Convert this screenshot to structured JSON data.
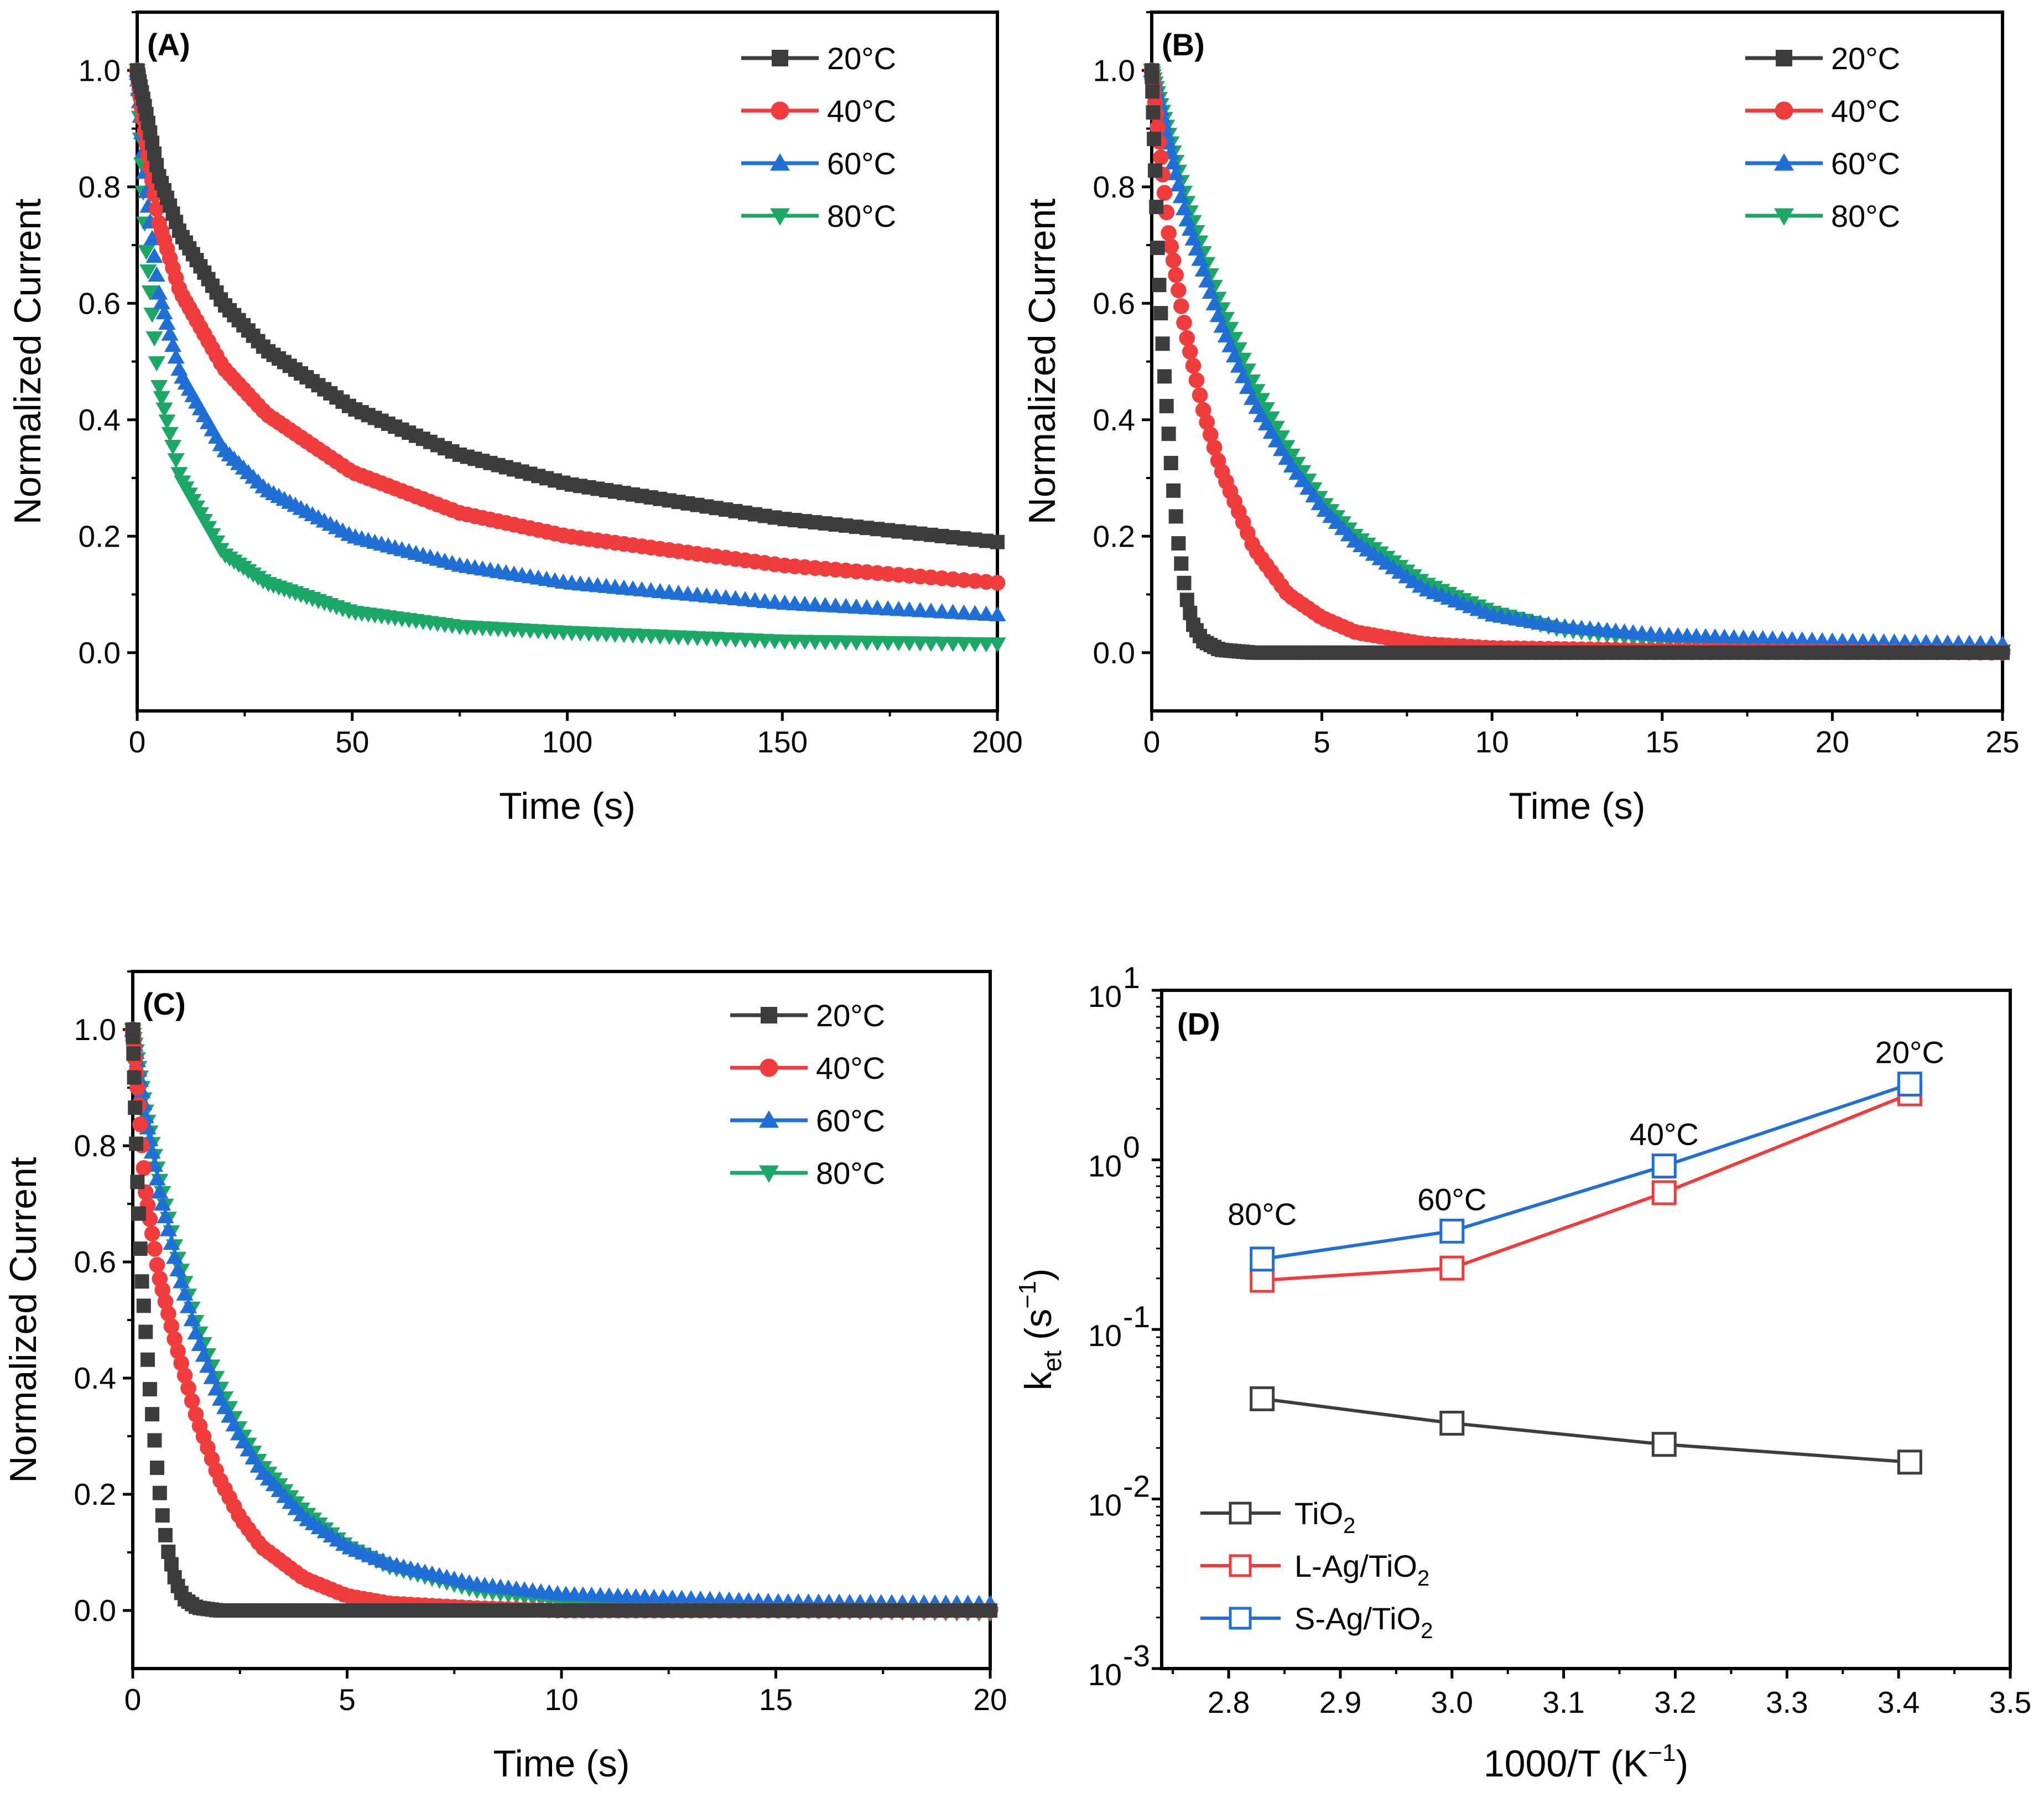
{
  "figure_title": "",
  "colors": {
    "20C": "#3d3d3d",
    "40C": "#f03c3c",
    "60C": "#1f6fd6",
    "80C": "#1ba866",
    "TiO2": "#3d3d3d",
    "L": "#f03c3c",
    "S": "#1f6fd6"
  },
  "chart_data": [
    {
      "id": "A",
      "panel_label": "(A)",
      "type": "scatter",
      "xlabel": "Time (s)",
      "ylabel": "Normalized Current",
      "xlim": [
        0,
        200
      ],
      "ylim": [
        -0.1,
        1.1
      ],
      "xticks": [
        "0",
        "50",
        "100",
        "150",
        "200"
      ],
      "yticks": [
        "0.0",
        "0.2",
        "0.4",
        "0.6",
        "0.8",
        "1.0"
      ],
      "legend": [
        "20°C",
        "40°C",
        "60°C",
        "80°C"
      ],
      "legend_position": "top-right",
      "series": [
        {
          "name": "20°C",
          "x": [
            0,
            2,
            5,
            10,
            20,
            30,
            50,
            75,
            100,
            150,
            200
          ],
          "y": [
            1.0,
            0.93,
            0.82,
            0.72,
            0.6,
            0.52,
            0.42,
            0.34,
            0.29,
            0.23,
            0.19
          ]
        },
        {
          "name": "40°C",
          "x": [
            0,
            2,
            5,
            10,
            20,
            30,
            50,
            75,
            100,
            150,
            200
          ],
          "y": [
            1.0,
            0.88,
            0.74,
            0.62,
            0.49,
            0.41,
            0.31,
            0.24,
            0.2,
            0.15,
            0.12
          ]
        },
        {
          "name": "60°C",
          "x": [
            0,
            2,
            5,
            10,
            20,
            30,
            50,
            75,
            100,
            150,
            200
          ],
          "y": [
            1.0,
            0.8,
            0.62,
            0.48,
            0.35,
            0.28,
            0.2,
            0.15,
            0.12,
            0.085,
            0.065
          ]
        },
        {
          "name": "80°C",
          "x": [
            0,
            2,
            5,
            10,
            20,
            30,
            50,
            75,
            100,
            150,
            200
          ],
          "y": [
            1.0,
            0.7,
            0.46,
            0.3,
            0.17,
            0.12,
            0.07,
            0.045,
            0.035,
            0.02,
            0.015
          ]
        }
      ]
    },
    {
      "id": "B",
      "panel_label": "(B)",
      "type": "scatter",
      "xlabel": "Time (s)",
      "ylabel": "Normalized Current",
      "xlim": [
        0,
        25
      ],
      "ylim": [
        -0.1,
        1.1
      ],
      "xticks": [
        "0",
        "5",
        "10",
        "15",
        "20",
        "25"
      ],
      "yticks": [
        "0.0",
        "0.2",
        "0.4",
        "0.6",
        "0.8",
        "1.0"
      ],
      "legend": [
        "20°C",
        "40°C",
        "60°C",
        "80°C"
      ],
      "legend_position": "top-right",
      "series": [
        {
          "name": "20°C",
          "x": [
            0,
            0.2,
            0.4,
            0.6,
            0.8,
            1.0,
            1.2,
            1.5,
            2,
            3,
            5,
            10,
            25
          ],
          "y": [
            1.0,
            0.65,
            0.45,
            0.3,
            0.18,
            0.1,
            0.05,
            0.02,
            0.005,
            0.0,
            0.0,
            0.0,
            0.0
          ]
        },
        {
          "name": "40°C",
          "x": [
            0,
            0.5,
            1,
            1.5,
            2,
            3,
            4,
            5,
            6,
            8,
            10,
            15,
            25
          ],
          "y": [
            1.0,
            0.72,
            0.55,
            0.42,
            0.32,
            0.18,
            0.1,
            0.06,
            0.035,
            0.015,
            0.008,
            0.004,
            0.0
          ]
        },
        {
          "name": "60°C",
          "x": [
            0,
            1,
            2,
            3,
            4,
            5,
            6,
            8,
            10,
            12,
            15,
            20,
            25
          ],
          "y": [
            1.0,
            0.75,
            0.57,
            0.43,
            0.33,
            0.25,
            0.19,
            0.11,
            0.065,
            0.045,
            0.03,
            0.02,
            0.015
          ]
        },
        {
          "name": "80°C",
          "x": [
            0,
            1,
            2,
            3,
            4,
            5,
            6,
            8,
            10,
            12,
            15,
            20,
            25
          ],
          "y": [
            1.0,
            0.78,
            0.6,
            0.46,
            0.35,
            0.26,
            0.2,
            0.12,
            0.07,
            0.04,
            0.02,
            0.008,
            0.003
          ]
        }
      ]
    },
    {
      "id": "C",
      "panel_label": "(C)",
      "type": "scatter",
      "xlabel": "Time (s)",
      "ylabel": "Normalized Current",
      "xlim": [
        0,
        20
      ],
      "ylim": [
        -0.1,
        1.1
      ],
      "xticks": [
        "0",
        "5",
        "10",
        "15",
        "20"
      ],
      "yticks": [
        "0.0",
        "0.2",
        "0.4",
        "0.6",
        "0.8",
        "1.0"
      ],
      "legend": [
        "20°C",
        "40°C",
        "60°C",
        "80°C"
      ],
      "legend_position": "top-right",
      "series": [
        {
          "name": "20°C",
          "x": [
            0,
            0.1,
            0.2,
            0.3,
            0.4,
            0.5,
            0.6,
            0.7,
            0.8,
            1.0,
            1.2,
            1.5,
            2,
            5,
            20
          ],
          "y": [
            1.0,
            0.75,
            0.58,
            0.48,
            0.38,
            0.3,
            0.22,
            0.16,
            0.11,
            0.05,
            0.02,
            0.005,
            0.0,
            0.0,
            0.0
          ]
        },
        {
          "name": "40°C",
          "x": [
            0,
            0.3,
            0.6,
            1,
            1.5,
            2,
            2.5,
            3,
            4,
            5,
            6,
            8,
            10,
            15,
            20
          ],
          "y": [
            1.0,
            0.72,
            0.58,
            0.46,
            0.33,
            0.23,
            0.16,
            0.11,
            0.055,
            0.025,
            0.012,
            0.004,
            0.0,
            0.0,
            0.0
          ]
        },
        {
          "name": "60°C",
          "x": [
            0,
            0.3,
            0.6,
            1,
            1.5,
            2,
            2.5,
            3,
            4,
            5,
            6,
            8,
            10,
            15,
            20
          ],
          "y": [
            1.0,
            0.85,
            0.73,
            0.6,
            0.47,
            0.37,
            0.3,
            0.24,
            0.16,
            0.11,
            0.08,
            0.045,
            0.028,
            0.015,
            0.012
          ]
        },
        {
          "name": "80°C",
          "x": [
            0,
            0.3,
            0.6,
            1,
            1.5,
            2,
            2.5,
            3,
            4,
            5,
            6,
            8,
            10,
            15,
            20
          ],
          "y": [
            1.0,
            0.86,
            0.75,
            0.62,
            0.49,
            0.39,
            0.31,
            0.25,
            0.17,
            0.11,
            0.075,
            0.035,
            0.015,
            0.0,
            -0.005
          ]
        }
      ]
    },
    {
      "id": "D",
      "panel_label": "(D)",
      "type": "line",
      "xlabel": "1000/T (K",
      "xlabel_sup": "−1",
      "xlabel_end": ")",
      "ylabel_base": "k",
      "ylabel_sub": "et",
      "ylabel_mid": " (s",
      "ylabel_sup": "−1",
      "ylabel_end": ")",
      "xlim": [
        2.74,
        3.5
      ],
      "ylim_log10": [
        -3,
        1
      ],
      "xticks": [
        2.8,
        2.9,
        3.0,
        3.1,
        3.2,
        3.3,
        3.4,
        3.5
      ],
      "xtick_labels": [
        "2.8",
        "2.9",
        "3.0",
        "3.1",
        "3.2",
        "3.3",
        "3.4",
        "3.5"
      ],
      "yticks_exp": [
        "1",
        "0",
        "-1",
        "-2",
        "-3"
      ],
      "ytick_base": "10",
      "legend_position": "bottom-left",
      "series": [
        {
          "name": "TiO2",
          "label_main": "TiO",
          "label_sub": "2",
          "x": [
            2.83,
            3.0,
            3.19,
            3.41
          ],
          "y": [
            0.039,
            0.028,
            0.021,
            0.0165
          ]
        },
        {
          "name": "L-Ag/TiO2",
          "label_main": "L-Ag/TiO",
          "label_sub": "2",
          "x": [
            2.83,
            3.0,
            3.19,
            3.41
          ],
          "y": [
            0.195,
            0.23,
            0.64,
            2.45
          ]
        },
        {
          "name": "S-Ag/TiO2",
          "label_main": "S-Ag/TiO",
          "label_sub": "2",
          "x": [
            2.83,
            3.0,
            3.19,
            3.41
          ],
          "y": [
            0.26,
            0.38,
            0.92,
            2.8
          ]
        }
      ],
      "annotations": [
        "80°C",
        "60°C",
        "40°C",
        "20°C"
      ]
    }
  ]
}
